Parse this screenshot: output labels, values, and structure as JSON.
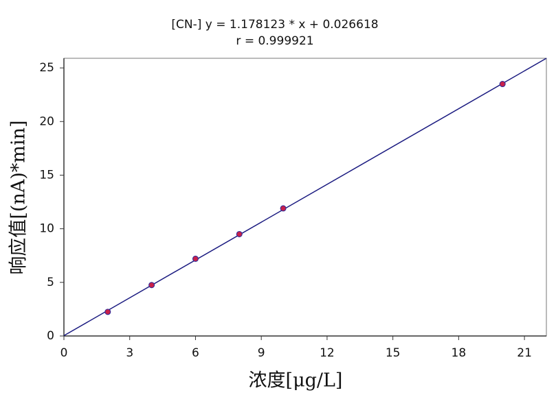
{
  "chart_data": {
    "type": "scatter",
    "title": "[CN-] y = 1.178123 * x + 0.026618",
    "subtitle": "r = 0.999921",
    "x_label": "浓度[μg/L]",
    "y_label": "响应值[(nA)*min]",
    "xlim": [
      0,
      22
    ],
    "ylim": [
      0,
      25.9
    ],
    "xticks": [
      0,
      3,
      6,
      9,
      12,
      15,
      18,
      21
    ],
    "yticks": [
      0,
      5,
      10,
      15,
      20,
      25
    ],
    "series": [
      {
        "type": "line",
        "color": "#1a1a80",
        "x": [
          0,
          22
        ],
        "values": [
          0.03,
          25.9
        ]
      },
      {
        "type": "scatter",
        "color": "#c8204a",
        "x": [
          2,
          4,
          6,
          8,
          10,
          20
        ],
        "values": [
          2.25,
          4.75,
          7.2,
          9.5,
          11.9,
          23.5
        ]
      }
    ]
  }
}
